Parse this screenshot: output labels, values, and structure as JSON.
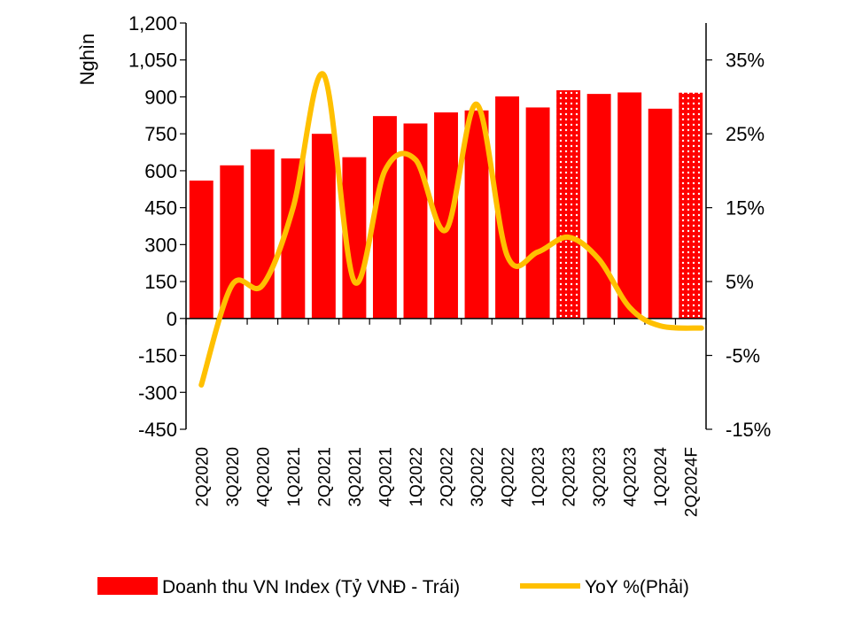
{
  "chart_data": {
    "type": "bar",
    "categories": [
      "2Q2020",
      "3Q2020",
      "4Q2020",
      "1Q2021",
      "2Q2021",
      "3Q2021",
      "4Q2021",
      "1Q2022",
      "2Q2022",
      "3Q2022",
      "4Q2022",
      "1Q2023",
      "2Q2023",
      "3Q2023",
      "4Q2023",
      "1Q2024",
      "2Q2024F"
    ],
    "series": [
      {
        "name": "Doanh thu VN Index (Tỷ VNĐ - Trái)",
        "kind": "bar",
        "axis": "left",
        "color": "#ff0000",
        "values": [
          560,
          622,
          687,
          650,
          750,
          655,
          822,
          792,
          837,
          845,
          902,
          857,
          927,
          912,
          918,
          852,
          917
        ],
        "patterned": [
          false,
          false,
          false,
          false,
          false,
          false,
          false,
          false,
          false,
          false,
          false,
          false,
          true,
          false,
          false,
          false,
          true
        ]
      },
      {
        "name": "YoY %(Phải)",
        "kind": "line",
        "axis": "right",
        "color": "#ffc000",
        "values": [
          -9,
          4.5,
          4.5,
          15,
          33,
          5,
          20,
          21.5,
          12,
          29,
          8.5,
          9,
          11,
          8,
          1.5,
          -1,
          -1.3
        ]
      }
    ],
    "y_left": {
      "label": "Nghìn",
      "ticks": [
        "1,200",
        "1,050",
        "900",
        "750",
        "600",
        "450",
        "300",
        "150",
        "0",
        "-150",
        "-300",
        "-450"
      ],
      "range": [
        -450,
        1200
      ]
    },
    "y_right": {
      "ticks": [
        "35%",
        "25%",
        "15%",
        "5%",
        "-5%",
        "-15%"
      ],
      "range": [
        -15,
        40
      ]
    },
    "grid": false,
    "legend": "bottom"
  }
}
